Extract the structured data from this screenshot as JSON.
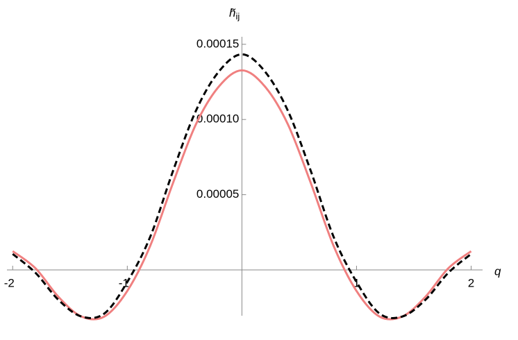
{
  "chart_data": {
    "type": "line",
    "x_label": "q",
    "y_label": {
      "base": "h̃",
      "sub": "ij"
    },
    "x": [
      -2,
      -1.8,
      -1.6,
      -1.4,
      -1.2,
      -1,
      -0.8,
      -0.6,
      -0.4,
      -0.2,
      0,
      0.2,
      0.4,
      0.6,
      0.8,
      1,
      1.2,
      1.4,
      1.6,
      1.8,
      2
    ],
    "series": [
      {
        "color": "#000000",
        "dashed": true,
        "values": [
          1.06e-05,
          -2e-06,
          -2e-05,
          -3.1e-05,
          -2.9e-05,
          -8e-06,
          2.2e-05,
          6.6e-05,
          0.000106,
          0.000132,
          0.0001433,
          0.000132,
          0.000106,
          6.6e-05,
          2.2e-05,
          -8e-06,
          -2.9e-05,
          -3.1e-05,
          -2e-05,
          -2e-06,
          1.06e-05
        ]
      },
      {
        "color": "#f08080",
        "dashed": false,
        "values": [
          1.24e-05,
          1e-06,
          -1.8e-05,
          -3.1e-05,
          -3.1e-05,
          -1.4e-05,
          1.6e-05,
          5.8e-05,
          9.7e-05,
          0.000122,
          0.0001327,
          0.000122,
          9.7e-05,
          5.8e-05,
          1.6e-05,
          -1.4e-05,
          -3.1e-05,
          -3.1e-05,
          -1.8e-05,
          1e-06,
          1.24e-05
        ]
      }
    ],
    "xlim": [
      -2.05,
      2.1
    ],
    "ylim": [
      -3.6e-05,
      0.000155
    ],
    "xticks": [
      -2,
      -1,
      1,
      2
    ],
    "yticks": [
      5e-05,
      {
        "value": 0.0001,
        "label": "0.00010"
      },
      0.00015
    ]
  }
}
